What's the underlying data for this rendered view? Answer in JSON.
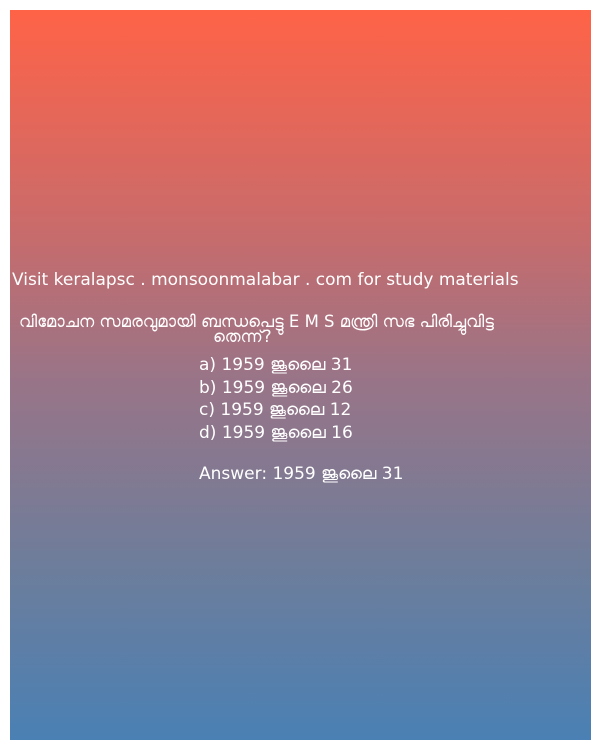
{
  "promo_text": "Visit keralapsc . monsoonmalabar . com for study materials",
  "question": {
    "line1": "വിമോചന സമരവുമായി ബന്ധപെട്ടു E M S  മന്ത്രി സഭ പിരിച്ചുവിട്ട",
    "line2": "തെന്ന്?"
  },
  "options": [
    "a) 1959 ജൂലൈ 31",
    "b) 1959 ജൂലൈ 26",
    "c) 1959 ജൂലൈ 12",
    "d) 1959 ജൂലൈ 16"
  ],
  "answer": "Answer: 1959 ജൂലൈ 31",
  "colors": {
    "gradient_top": "#ff6347",
    "gradient_bottom": "#4a80b4",
    "text": "#ffffff"
  }
}
